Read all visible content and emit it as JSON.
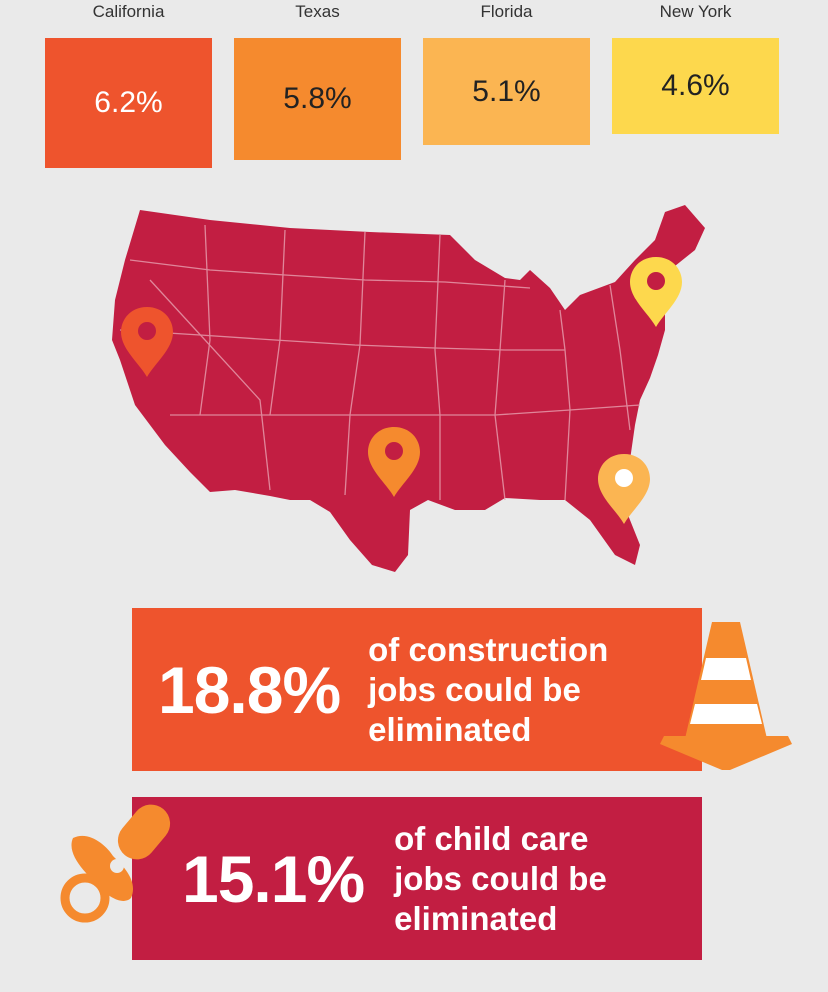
{
  "colors": {
    "background": "#eaeaea",
    "california": "#ee542d",
    "texas": "#f58a2e",
    "florida": "#fbb552",
    "new_york": "#fdd84d",
    "map": "#c21e42",
    "construction_box": "#ee542d",
    "childcare_box": "#c21e42",
    "icon_orange": "#f58a2e"
  },
  "chart_data": {
    "type": "bar",
    "categories": [
      "California",
      "Texas",
      "Florida",
      "New York"
    ],
    "values": [
      6.2,
      5.8,
      5.1,
      4.6
    ],
    "value_labels": [
      "6.2%",
      "5.8%",
      "5.1%",
      "4.6%"
    ],
    "unit": "%"
  },
  "map": {
    "markers": [
      "California",
      "Texas",
      "Florida",
      "New York"
    ]
  },
  "stats": {
    "construction": {
      "value": "18.8%",
      "lines": [
        "of construction",
        "jobs could be",
        "eliminated"
      ],
      "icon": "traffic-cone-icon"
    },
    "childcare": {
      "value": "15.1%",
      "lines": [
        "of child care",
        "jobs could be",
        "eliminated"
      ],
      "icon": "pacifier-icon"
    }
  }
}
